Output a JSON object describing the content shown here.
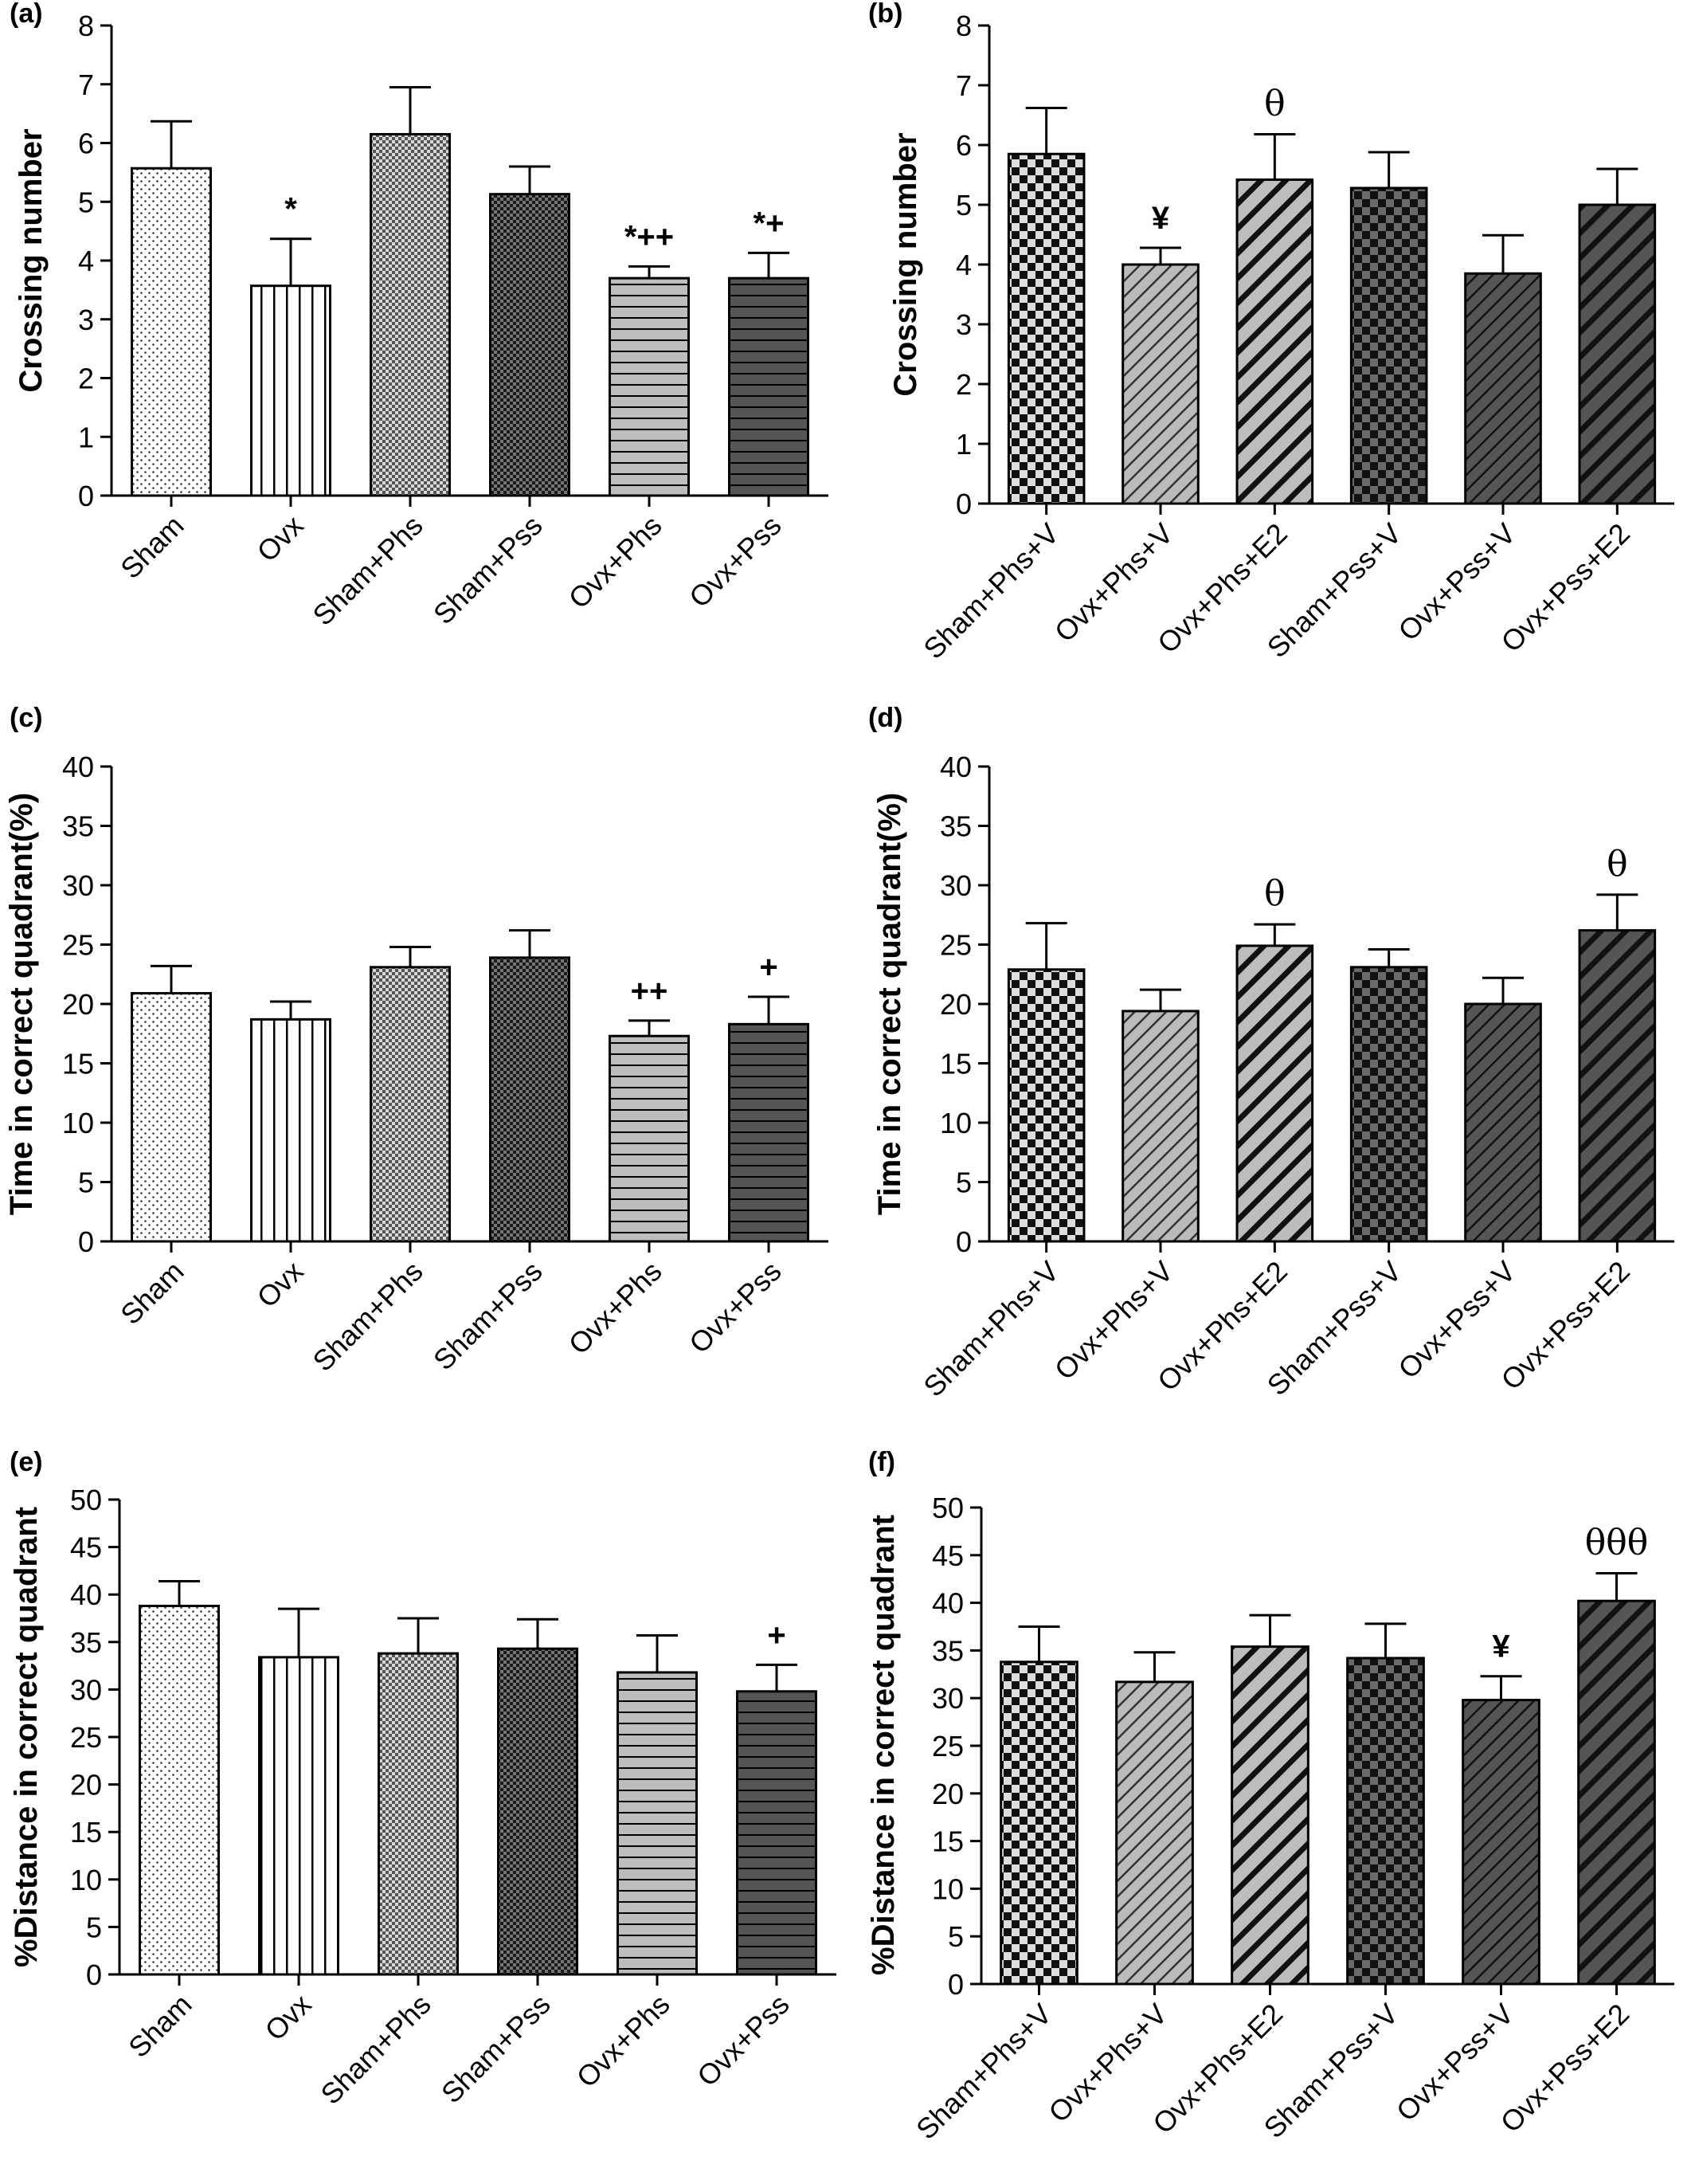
{
  "chart_data": [
    {
      "panel": "(a)",
      "type": "bar",
      "ylabel": "Crossing number",
      "ylim": [
        0,
        8
      ],
      "yticks": [
        "0",
        "1",
        "2",
        "3",
        "4",
        "5",
        "6",
        "7",
        "8"
      ],
      "categories": [
        "Sham",
        "Ovx",
        "Sham+Phs",
        "Sham+Pss",
        "Ovx+Phs",
        "Ovx+Pss"
      ],
      "values": [
        5.57,
        3.57,
        6.15,
        5.13,
        3.7,
        3.7
      ],
      "errors": [
        0.8,
        0.8,
        0.8,
        0.47,
        0.2,
        0.43
      ],
      "patterns": [
        "dots",
        "vlines",
        "fine-check",
        "dark-check",
        "hlines-light",
        "hlines-dark"
      ],
      "annotations": [
        "",
        "*",
        "",
        "",
        "*++",
        "*+"
      ]
    },
    {
      "panel": "(b)",
      "type": "bar",
      "ylabel": "Crossing number",
      "ylim": [
        0,
        8
      ],
      "yticks": [
        "0",
        "1",
        "2",
        "3",
        "4",
        "5",
        "6",
        "7",
        "8"
      ],
      "categories": [
        "Sham+Phs+V",
        "Ovx+Phs+V",
        "Ovx+Phs+E2",
        "Sham+Pss+V",
        "Ovx+Pss+V",
        "Ovx+Pss+E2"
      ],
      "values": [
        5.85,
        4.0,
        5.42,
        5.28,
        3.85,
        5.0
      ],
      "errors": [
        0.77,
        0.28,
        0.76,
        0.6,
        0.64,
        0.6
      ],
      "patterns": [
        "check-light",
        "diag-light",
        "diag-bold-light",
        "check-dark",
        "diag-dark",
        "diag-bold-dark"
      ],
      "annotations": [
        "",
        "¥",
        "θ",
        "",
        "",
        ""
      ]
    },
    {
      "panel": "(c)",
      "type": "bar",
      "ylabel": "Time in correct quadrant(%)",
      "ylim": [
        0,
        40
      ],
      "yticks": [
        "0",
        "5",
        "10",
        "15",
        "20",
        "25",
        "30",
        "35",
        "40"
      ],
      "categories": [
        "Sham",
        "Ovx",
        "Sham+Phs",
        "Sham+Pss",
        "Ovx+Phs",
        "Ovx+Pss"
      ],
      "values": [
        20.9,
        18.7,
        23.1,
        23.9,
        17.3,
        18.3
      ],
      "errors": [
        2.3,
        1.5,
        1.7,
        2.3,
        1.3,
        2.3
      ],
      "patterns": [
        "dots",
        "vlines",
        "fine-check",
        "dark-check",
        "hlines-light",
        "hlines-dark"
      ],
      "annotations": [
        "",
        "",
        "",
        "",
        "++",
        "+"
      ]
    },
    {
      "panel": "(d)",
      "type": "bar",
      "ylabel": "Time in correct quadrant(%)",
      "ylim": [
        0,
        40
      ],
      "yticks": [
        "0",
        "5",
        "10",
        "15",
        "20",
        "25",
        "30",
        "35",
        "40"
      ],
      "categories": [
        "Sham+Phs+V",
        "Ovx+Phs+V",
        "Ovx+Phs+E2",
        "Sham+Pss+V",
        "Ovx+Pss+V",
        "Ovx+Pss+E2"
      ],
      "values": [
        22.9,
        19.4,
        24.9,
        23.1,
        20.0,
        26.2
      ],
      "errors": [
        3.9,
        1.8,
        1.8,
        1.5,
        2.2,
        3.0
      ],
      "patterns": [
        "check-light",
        "diag-light",
        "diag-bold-light",
        "check-dark",
        "diag-dark",
        "diag-bold-dark"
      ],
      "annotations": [
        "",
        "",
        "θ",
        "",
        "",
        "θ"
      ]
    },
    {
      "panel": "(e)",
      "type": "bar",
      "ylabel": "%Distance in correct quadrant",
      "ylim": [
        0,
        50
      ],
      "yticks": [
        "0",
        "5",
        "10",
        "15",
        "20",
        "25",
        "30",
        "35",
        "40",
        "45",
        "50"
      ],
      "categories": [
        "Sham",
        "Ovx",
        "Sham+Phs",
        "Sham+Pss",
        "Ovx+Phs",
        "Ovx+Pss"
      ],
      "values": [
        38.8,
        33.4,
        33.8,
        34.3,
        31.8,
        29.8
      ],
      "errors": [
        2.6,
        5.1,
        3.7,
        3.1,
        3.9,
        2.8
      ],
      "patterns": [
        "dots",
        "vlines",
        "fine-check",
        "dark-check",
        "hlines-light",
        "hlines-dark"
      ],
      "annotations": [
        "",
        "",
        "",
        "",
        "",
        "+"
      ]
    },
    {
      "panel": "(f)",
      "type": "bar",
      "ylabel": "%Distance in correct quadrant",
      "ylim": [
        0,
        50
      ],
      "yticks": [
        "0",
        "5",
        "10",
        "15",
        "20",
        "25",
        "30",
        "35",
        "40",
        "45",
        "50"
      ],
      "categories": [
        "Sham+Phs+V",
        "Ovx+Phs+V",
        "Ovx+Phs+E2",
        "Sham+Pss+V",
        "Ovx+Pss+V",
        "Ovx+Pss+E2"
      ],
      "values": [
        33.8,
        31.7,
        35.4,
        34.2,
        29.8,
        40.2
      ],
      "errors": [
        3.7,
        3.1,
        3.3,
        3.6,
        2.5,
        2.9
      ],
      "patterns": [
        "check-light",
        "diag-light",
        "diag-bold-light",
        "check-dark",
        "diag-dark",
        "diag-bold-dark"
      ],
      "annotations": [
        "",
        "",
        "",
        "",
        "¥",
        "θθθ"
      ]
    }
  ]
}
